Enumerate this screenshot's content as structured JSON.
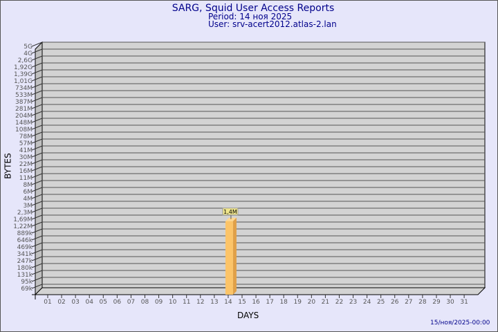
{
  "header": {
    "title": "SARG, Squid User Access Reports",
    "period": "Period: 14 ноя 2025",
    "user": "User: srv-acert2012.atlas-2.lan"
  },
  "footer": {
    "timestamp": "15/ноя/2025-00:00"
  },
  "chart_data": {
    "type": "bar",
    "xlabel": "DAYS",
    "ylabel": "BYTES",
    "y_scale": "log",
    "y_tick_labels": [
      "5G",
      "4G",
      "2,6G",
      "1,92G",
      "1,39G",
      "1,01G",
      "734M",
      "533M",
      "387M",
      "281M",
      "204M",
      "148M",
      "108M",
      "78M",
      "57M",
      "41M",
      "30M",
      "22M",
      "16M",
      "11M",
      "8M",
      "6M",
      "4M",
      "3M",
      "2,3M",
      "1,69M",
      "1,22M",
      "889k",
      "646k",
      "469k",
      "341k",
      "247k",
      "180k",
      "131k",
      "95k",
      "69k"
    ],
    "categories": [
      "01",
      "02",
      "03",
      "04",
      "05",
      "06",
      "07",
      "08",
      "09",
      "10",
      "11",
      "12",
      "13",
      "14",
      "15",
      "16",
      "17",
      "18",
      "19",
      "20",
      "21",
      "22",
      "23",
      "24",
      "25",
      "26",
      "27",
      "28",
      "29",
      "30",
      "31"
    ],
    "bars": [
      {
        "day": "14",
        "value": 1400000,
        "label": "1,4M"
      }
    ],
    "grid": true,
    "colors": {
      "bar_front": "#fcc468",
      "bar_side": "#e0a048",
      "bar_top": "#ffd890",
      "wall": "#d3d3d3",
      "text": "#00008b"
    }
  }
}
